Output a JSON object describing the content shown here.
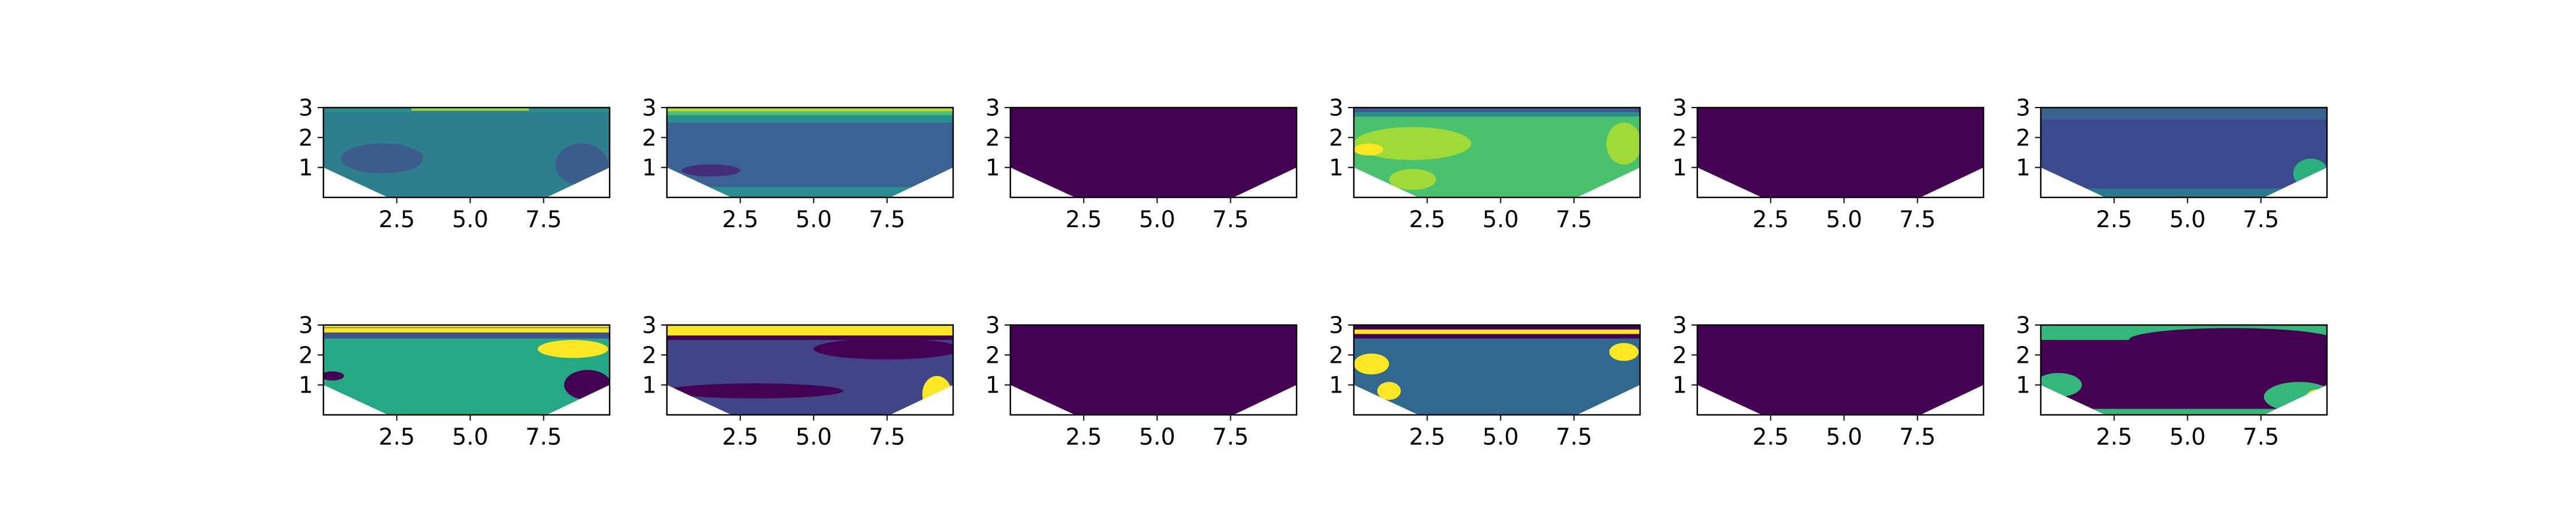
{
  "figure": {
    "rows": 2,
    "cols": 6,
    "panel_count": 12
  },
  "chart_data": [
    {
      "panel": "r1c1",
      "type": "heatmap",
      "xlim": [
        0,
        9.75
      ],
      "ylim": [
        0,
        3
      ],
      "xticks": [
        "2.5",
        "5.0",
        "7.5"
      ],
      "yticks": [
        "1",
        "2",
        "3"
      ],
      "colormap": "viridis",
      "dominant_color": "#2e7f8e",
      "secondary_color": "#3c5c8c"
    },
    {
      "panel": "r1c2",
      "type": "heatmap",
      "xlim": [
        0,
        9.75
      ],
      "ylim": [
        0,
        3
      ],
      "xticks": [
        "2.5",
        "5.0",
        "7.5"
      ],
      "yticks": [
        "1",
        "2",
        "3"
      ],
      "colormap": "viridis",
      "dominant_color": "#3a6293",
      "secondary_color": "#2b8d8d"
    },
    {
      "panel": "r1c3",
      "type": "heatmap",
      "xlim": [
        0,
        9.75
      ],
      "ylim": [
        0,
        3
      ],
      "xticks": [
        "2.5",
        "5.0",
        "7.5"
      ],
      "yticks": [
        "1",
        "2",
        "3"
      ],
      "colormap": "viridis",
      "dominant_color": "#440154",
      "secondary_color": "#440154"
    },
    {
      "panel": "r1c4",
      "type": "heatmap",
      "xlim": [
        0,
        9.75
      ],
      "ylim": [
        0,
        3
      ],
      "xticks": [
        "2.5",
        "5.0",
        "7.5"
      ],
      "yticks": [
        "1",
        "2",
        "3"
      ],
      "colormap": "viridis",
      "dominant_color": "#4ac16d",
      "secondary_color": "#a0da39"
    },
    {
      "panel": "r1c5",
      "type": "heatmap",
      "xlim": [
        0,
        9.75
      ],
      "ylim": [
        0,
        3
      ],
      "xticks": [
        "2.5",
        "5.0",
        "7.5"
      ],
      "yticks": [
        "1",
        "2",
        "3"
      ],
      "colormap": "viridis",
      "dominant_color": "#440154",
      "secondary_color": "#440154"
    },
    {
      "panel": "r1c6",
      "type": "heatmap",
      "xlim": [
        0,
        9.75
      ],
      "ylim": [
        0,
        3
      ],
      "xticks": [
        "2.5",
        "5.0",
        "7.5"
      ],
      "yticks": [
        "1",
        "2",
        "3"
      ],
      "colormap": "viridis",
      "dominant_color": "#3b4a8c",
      "secondary_color": "#35648e"
    },
    {
      "panel": "r2c1",
      "type": "heatmap",
      "xlim": [
        0,
        9.75
      ],
      "ylim": [
        0,
        3
      ],
      "xticks": [
        "2.5",
        "5.0",
        "7.5"
      ],
      "yticks": [
        "1",
        "2",
        "3"
      ],
      "colormap": "viridis",
      "dominant_color": "#25a884",
      "secondary_color": "#fde725"
    },
    {
      "panel": "r2c2",
      "type": "heatmap",
      "xlim": [
        0,
        9.75
      ],
      "ylim": [
        0,
        3
      ],
      "xticks": [
        "2.5",
        "5.0",
        "7.5"
      ],
      "yticks": [
        "1",
        "2",
        "3"
      ],
      "colormap": "viridis",
      "dominant_color": "#414487",
      "secondary_color": "#fde725"
    },
    {
      "panel": "r2c3",
      "type": "heatmap",
      "xlim": [
        0,
        9.75
      ],
      "ylim": [
        0,
        3
      ],
      "xticks": [
        "2.5",
        "5.0",
        "7.5"
      ],
      "yticks": [
        "1",
        "2",
        "3"
      ],
      "colormap": "viridis",
      "dominant_color": "#440154",
      "secondary_color": "#440154"
    },
    {
      "panel": "r2c4",
      "type": "heatmap",
      "xlim": [
        0,
        9.75
      ],
      "ylim": [
        0,
        3
      ],
      "xticks": [
        "2.5",
        "5.0",
        "7.5"
      ],
      "yticks": [
        "1",
        "2",
        "3"
      ],
      "colormap": "viridis",
      "dominant_color": "#31688e",
      "secondary_color": "#fde725"
    },
    {
      "panel": "r2c5",
      "type": "heatmap",
      "xlim": [
        0,
        9.75
      ],
      "ylim": [
        0,
        3
      ],
      "xticks": [
        "2.5",
        "5.0",
        "7.5"
      ],
      "yticks": [
        "1",
        "2",
        "3"
      ],
      "colormap": "viridis",
      "dominant_color": "#440154",
      "secondary_color": "#440154"
    },
    {
      "panel": "r2c6",
      "type": "heatmap",
      "xlim": [
        0,
        9.75
      ],
      "ylim": [
        0,
        3
      ],
      "xticks": [
        "2.5",
        "5.0",
        "7.5"
      ],
      "yticks": [
        "1",
        "2",
        "3"
      ],
      "colormap": "viridis",
      "dominant_color": "#440154",
      "secondary_color": "#35b779"
    }
  ]
}
